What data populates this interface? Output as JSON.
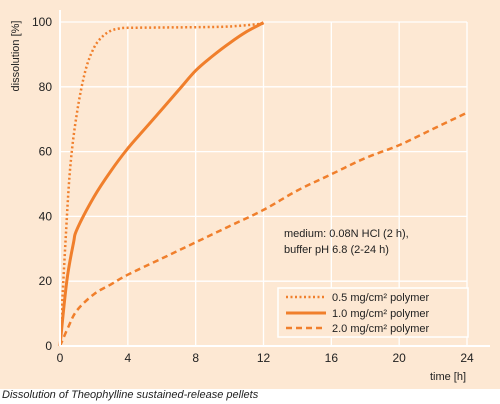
{
  "caption": "Dissolution of Theophylline sustained-release pellets",
  "chart_data": {
    "type": "line",
    "title": "",
    "xlabel": "time [h]",
    "ylabel": "dissolution [%]",
    "xlim": [
      0,
      24
    ],
    "ylim": [
      0,
      100
    ],
    "xticks": [
      0,
      4,
      8,
      12,
      16,
      20,
      24
    ],
    "yticks": [
      0,
      20,
      40,
      60,
      80,
      100
    ],
    "grid": true,
    "legend_position": "bottom-right",
    "annotation": [
      "medium:  0.08N HCl (2 h),",
      "buffer pH 6.8 (2-24 h)"
    ],
    "colors": {
      "line": "#f07f2c",
      "background": "#fde8d3",
      "grid": "#ffffff"
    },
    "series": [
      {
        "name": "0.5 mg/cm² polymer",
        "style": "dotted",
        "x": [
          0,
          0.3,
          0.6,
          1,
          1.5,
          2,
          2.5,
          3,
          3.5,
          4,
          6,
          8,
          10,
          12
        ],
        "y": [
          0,
          30,
          55,
          72,
          85,
          92,
          95.5,
          97.3,
          98,
          98.2,
          98.3,
          98.4,
          98.6,
          99.5
        ]
      },
      {
        "name": "1.0 mg/cm² polymer",
        "style": "solid",
        "x": [
          0,
          0.4,
          0.8,
          1,
          2,
          3,
          4,
          5,
          6,
          7,
          8,
          9,
          10,
          11,
          12
        ],
        "y": [
          0,
          20,
          32,
          36,
          46,
          54,
          61,
          67,
          73,
          79,
          85,
          89.5,
          93.5,
          97,
          99.8
        ]
      },
      {
        "name": "2.0 mg/cm² polymer",
        "style": "dashed",
        "x": [
          0,
          0.5,
          1,
          2,
          3,
          4,
          6,
          8,
          10,
          12,
          14,
          16,
          18,
          20,
          22,
          24
        ],
        "y": [
          0,
          6,
          11,
          16,
          19,
          22,
          27,
          32,
          37,
          42,
          48,
          53,
          58,
          62,
          67,
          72
        ]
      }
    ]
  }
}
